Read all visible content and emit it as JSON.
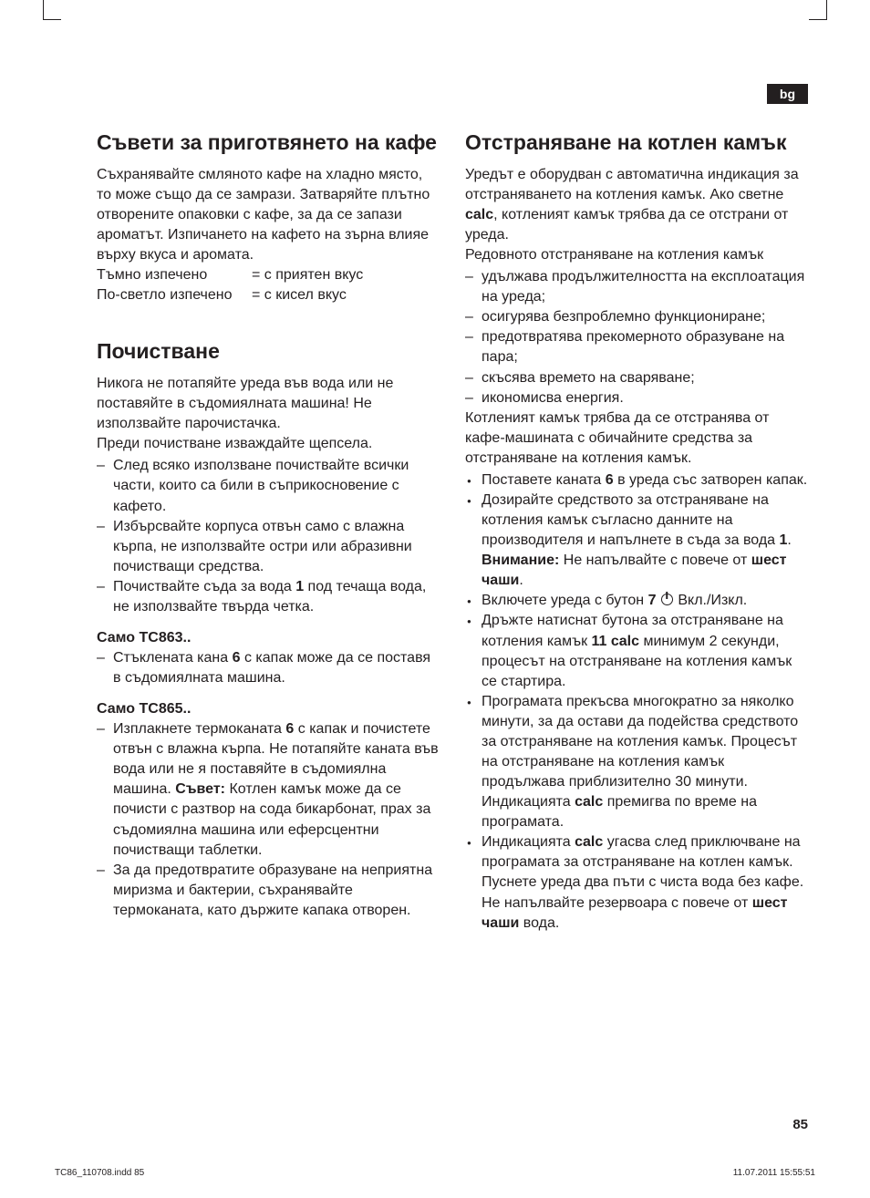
{
  "lang_badge": "bg",
  "page_number": "85",
  "footer_left": "TC86_110708.indd   85",
  "footer_right": "11.07.2011   15:55:51",
  "colors": {
    "text": "#231f20",
    "background": "#ffffff",
    "badge_bg": "#231f20",
    "badge_text": "#ffffff"
  },
  "left": {
    "s1": {
      "heading": "Съвети за приготвянето на кафе",
      "p1": "Съхранявайте смляното кафе на хладно място, то може също да се замрази. Затваряйте плътно отворените опаковки с кафе, за да се запази ароматът. Изпичането на кафето на зърна влияе върху вкуса и аромата.",
      "roast1_label": "Тъмно изпечено",
      "roast1_val": "= с приятен вкус",
      "roast2_label": "По-светло изпечено",
      "roast2_val": "= с кисел вкус"
    },
    "s2": {
      "heading": "Почистване",
      "p1": "Никога не потапяйте уреда във вода или не поставяйте в съдомиялната машина! Не използвайте парочистачка.",
      "p2": "Преди почистване изваждайте щепсела.",
      "li1": "След всяко използване почиствайте всички части, които са били в съприкосновение с кафето.",
      "li2": "Избърсвайте корпуса отвън само с влажна кърпа, не използвайте остри или абразивни почистващи средства.",
      "li3_a": "Почиствайте съда за вода ",
      "li3_b": "1",
      "li3_c": " под течаща вода, не използвайте твърда четка.",
      "sub1": "Само TC863..",
      "s1_li1_a": "Стъклената кана ",
      "s1_li1_b": "6",
      "s1_li1_c": " с капак може да се поставя в съдомиялната машина.",
      "sub2": "Само TC865..",
      "s2_li1_a": "Изплакнете термоканата ",
      "s2_li1_b": "6",
      "s2_li1_c": " с капак и почистете отвън с влажна кърпа. Не потапяйте каната във вода или не я поставяйте в съдомиялна машина. ",
      "s2_li1_d": "Съвет:",
      "s2_li1_e": " Котлен камък може да се почисти с разтвор на сода бикарбонат, прах за съдомиялна машина или еферсцентни почистващи таблетки.",
      "s2_li2": "За да предотвратите образуване на неприятна миризма и бактерии, съхранявайте термоканата, като държите капака отворен."
    }
  },
  "right": {
    "s1": {
      "heading": "Отстраняване на котлен камък",
      "p1_a": "Уредът е оборудван с автоматична индикация за отстраняването на котления камък. Ако светне ",
      "p1_b": "calc",
      "p1_c": ", котленият камък трябва да се отстрани от уреда.",
      "p2": "Редовното отстраняване на котления камък",
      "d1": "удължава продължителността на експлоатация на уреда;",
      "d2": "осигурява безпроблемно функциониране;",
      "d3": "предотвратява прекомерното образуване на пара;",
      "d4": "скъсява времето на сваряване;",
      "d5": "икономисва енергия.",
      "p3": "Котленият камък трябва да се отстранява от кафе-машината с обичайните средства за отстраняване на котления камък.",
      "b1_a": "Поставете каната ",
      "b1_b": "6",
      "b1_c": " в уреда със затворен капак.",
      "b2_a": "Дозирайте средството за отстраняване на котления камък съгласно данните на производителя и напълнете в съда за вода ",
      "b2_b": "1",
      "b2_c": ".",
      "b2_d": "Внимание:",
      "b2_e": " Не напълвайте с повече от ",
      "b2_f": "шест чаши",
      "b2_g": ".",
      "b3_a": "Включете уреда с бутон ",
      "b3_b": "7",
      "b3_c": " Вкл./Изкл.",
      "b4_a": "Дръжте натиснат бутона за отстраняване на котления камък ",
      "b4_b": "11 calc",
      "b4_c": " минимум 2 секунди, процесът на отстраняване на котления камък се стартира.",
      "b5_a": "Програмата прекъсва многократно за няколко минути, за да остави да подейства средството за отстраняване на котления камък. Процесът на отстраняване на котления камък продължава приблизително 30 минути. Индикацията ",
      "b5_b": "calc",
      "b5_c": " премигва по време на програмата.",
      "b6_a": "Индикацията ",
      "b6_b": "calc",
      "b6_c": " угасва след приключване на програмата за отстраняване на котлен камък. Пуснете уреда два пъти с чиста вода без кафе.  Не напълвайте резервоара с повече от ",
      "b6_d": "шест чаши",
      "b6_e": " вода."
    }
  }
}
